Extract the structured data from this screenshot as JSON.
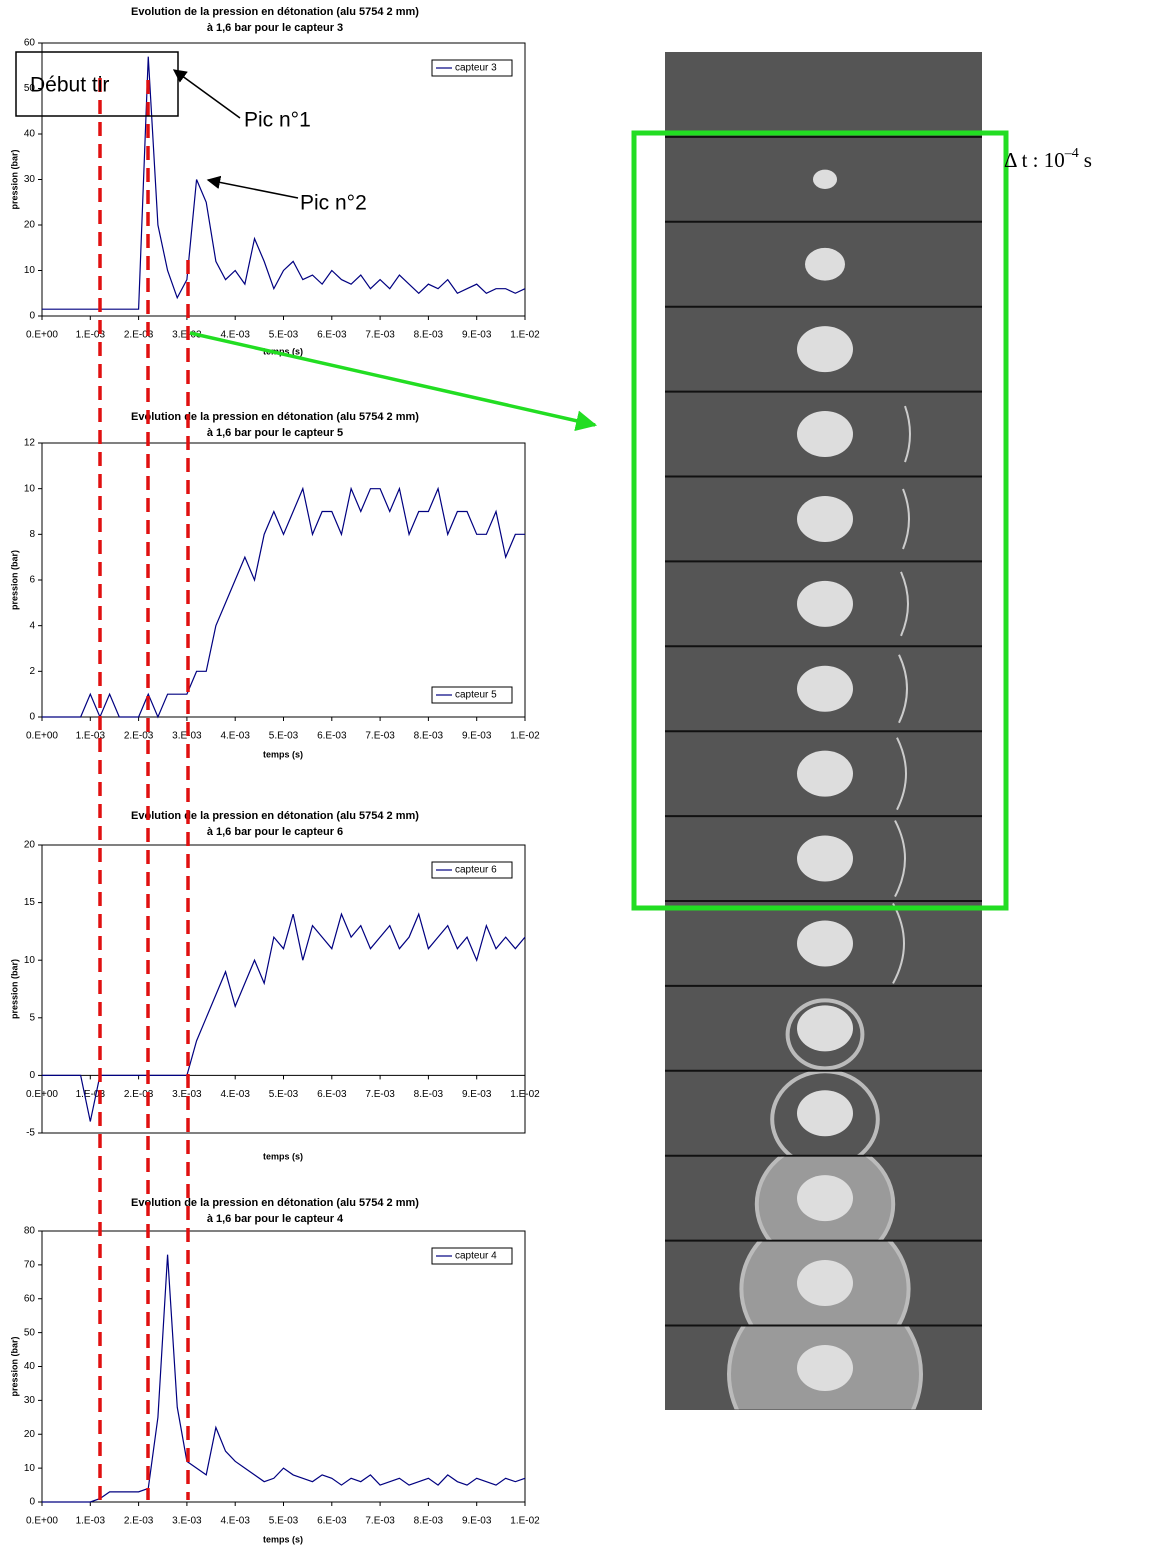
{
  "chart_data": [
    {
      "type": "line",
      "title": "Evolution de la pression en détonation (alu 5754 2 mm)",
      "subtitle": "à 1,6 bar pour le capteur 3",
      "x_label": "temps (s)",
      "y_label": "pression (bar)",
      "x": [
        0,
        0.0002,
        0.0004,
        0.0006,
        0.0008,
        0.001,
        0.0012,
        0.0014,
        0.0016,
        0.0018,
        0.002,
        0.0022,
        0.0024,
        0.0026,
        0.0028,
        0.003,
        0.0032,
        0.0034,
        0.0036,
        0.0038,
        0.004,
        0.0042,
        0.0044,
        0.0046,
        0.0048,
        0.005,
        0.0052,
        0.0054,
        0.0056,
        0.0058,
        0.006,
        0.0062,
        0.0064,
        0.0066,
        0.0068,
        0.007,
        0.0072,
        0.0074,
        0.0076,
        0.0078,
        0.008,
        0.0082,
        0.0084,
        0.0086,
        0.0088,
        0.009,
        0.0092,
        0.0094,
        0.0096,
        0.0098,
        0.01
      ],
      "series": [
        {
          "name": "capteur 3",
          "color": "#000080",
          "values": [
            1.5,
            1.5,
            1.5,
            1.5,
            1.5,
            1.5,
            1.5,
            1.5,
            1.5,
            1.5,
            1.5,
            57,
            20,
            10,
            4,
            8,
            30,
            25,
            12,
            8,
            10,
            7,
            17,
            12,
            6,
            10,
            12,
            8,
            9,
            7,
            10,
            8,
            7,
            9,
            6,
            8,
            6,
            9,
            7,
            5,
            7,
            6,
            8,
            5,
            6,
            7,
            5,
            6,
            6,
            5,
            6
          ]
        }
      ],
      "xlim": [
        0,
        0.01
      ],
      "xticks": [
        {
          "value": 0,
          "label": "0.E+00"
        },
        {
          "value": 0.001,
          "label": "1.E-03"
        },
        {
          "value": 0.002,
          "label": "2.E-03"
        },
        {
          "value": 0.003,
          "label": "3.E-03"
        },
        {
          "value": 0.004,
          "label": "4.E-03"
        },
        {
          "value": 0.005,
          "label": "5.E-03"
        },
        {
          "value": 0.006,
          "label": "6.E-03"
        },
        {
          "value": 0.007,
          "label": "7.E-03"
        },
        {
          "value": 0.008,
          "label": "8.E-03"
        },
        {
          "value": 0.009,
          "label": "9.E-03"
        },
        {
          "value": 0.01,
          "label": "1.E-02"
        }
      ],
      "ylim": [
        0,
        60
      ],
      "yticks": [
        0,
        10,
        20,
        30,
        40,
        50,
        60
      ],
      "legend": "upper right"
    },
    {
      "type": "line",
      "title": "Evolution de la pression en détonation (alu 5754 2 mm)",
      "subtitle": "à 1,6 bar pour le capteur 5",
      "x_label": "temps (s)",
      "y_label": "pression (bar)",
      "x": [
        0,
        0.0002,
        0.0004,
        0.0006,
        0.0008,
        0.001,
        0.0012,
        0.0014,
        0.0016,
        0.0018,
        0.002,
        0.0022,
        0.0024,
        0.0026,
        0.0028,
        0.003,
        0.0032,
        0.0034,
        0.0036,
        0.0038,
        0.004,
        0.0042,
        0.0044,
        0.0046,
        0.0048,
        0.005,
        0.0052,
        0.0054,
        0.0056,
        0.0058,
        0.006,
        0.0062,
        0.0064,
        0.0066,
        0.0068,
        0.007,
        0.0072,
        0.0074,
        0.0076,
        0.0078,
        0.008,
        0.0082,
        0.0084,
        0.0086,
        0.0088,
        0.009,
        0.0092,
        0.0094,
        0.0096,
        0.0098,
        0.01
      ],
      "series": [
        {
          "name": "capteur 5",
          "color": "#000080",
          "values": [
            0,
            0,
            0,
            0,
            0,
            1,
            0,
            1,
            0,
            0,
            0,
            1,
            0,
            1,
            1,
            1,
            2,
            2,
            4,
            5,
            6,
            7,
            6,
            8,
            9,
            8,
            9,
            10,
            8,
            9,
            9,
            8,
            10,
            9,
            10,
            10,
            9,
            10,
            8,
            9,
            9,
            10,
            8,
            9,
            9,
            8,
            8,
            9,
            7,
            8,
            8
          ]
        }
      ],
      "xlim": [
        0,
        0.01
      ],
      "xticks": [
        {
          "value": 0,
          "label": "0.E+00"
        },
        {
          "value": 0.001,
          "label": "1.E-03"
        },
        {
          "value": 0.002,
          "label": "2.E-03"
        },
        {
          "value": 0.003,
          "label": "3.E-03"
        },
        {
          "value": 0.004,
          "label": "4.E-03"
        },
        {
          "value": 0.005,
          "label": "5.E-03"
        },
        {
          "value": 0.006,
          "label": "6.E-03"
        },
        {
          "value": 0.007,
          "label": "7.E-03"
        },
        {
          "value": 0.008,
          "label": "8.E-03"
        },
        {
          "value": 0.009,
          "label": "9.E-03"
        },
        {
          "value": 0.01,
          "label": "1.E-02"
        }
      ],
      "ylim": [
        0,
        12
      ],
      "yticks": [
        0,
        2,
        4,
        6,
        8,
        10,
        12
      ],
      "legend": "lower right"
    },
    {
      "type": "line",
      "title": "Evolution de la pression en détonation (alu 5754 2 mm)",
      "subtitle": "à 1,6 bar pour le capteur 6",
      "x_label": "temps (s)",
      "y_label": "pression (bar)",
      "x": [
        0,
        0.0002,
        0.0004,
        0.0006,
        0.0008,
        0.001,
        0.0012,
        0.0014,
        0.0016,
        0.0018,
        0.002,
        0.0022,
        0.0024,
        0.0026,
        0.0028,
        0.003,
        0.0032,
        0.0034,
        0.0036,
        0.0038,
        0.004,
        0.0042,
        0.0044,
        0.0046,
        0.0048,
        0.005,
        0.0052,
        0.0054,
        0.0056,
        0.0058,
        0.006,
        0.0062,
        0.0064,
        0.0066,
        0.0068,
        0.007,
        0.0072,
        0.0074,
        0.0076,
        0.0078,
        0.008,
        0.0082,
        0.0084,
        0.0086,
        0.0088,
        0.009,
        0.0092,
        0.0094,
        0.0096,
        0.0098,
        0.01
      ],
      "series": [
        {
          "name": "capteur 6",
          "color": "#000080",
          "values": [
            0,
            0,
            0,
            0,
            0,
            -4,
            0,
            0,
            0,
            0,
            0,
            0,
            0,
            0,
            0,
            0,
            3,
            5,
            7,
            9,
            6,
            8,
            10,
            8,
            12,
            11,
            14,
            10,
            13,
            12,
            11,
            14,
            12,
            13,
            11,
            12,
            13,
            11,
            12,
            14,
            11,
            12,
            13,
            11,
            12,
            10,
            13,
            11,
            12,
            11,
            12
          ]
        }
      ],
      "xlim": [
        0,
        0.01
      ],
      "xticks": [
        {
          "value": 0,
          "label": "0.E+00"
        },
        {
          "value": 0.001,
          "label": "1.E-03"
        },
        {
          "value": 0.002,
          "label": "2.E-03"
        },
        {
          "value": 0.003,
          "label": "3.E-03"
        },
        {
          "value": 0.004,
          "label": "4.E-03"
        },
        {
          "value": 0.005,
          "label": "5.E-03"
        },
        {
          "value": 0.006,
          "label": "6.E-03"
        },
        {
          "value": 0.007,
          "label": "7.E-03"
        },
        {
          "value": 0.008,
          "label": "8.E-03"
        },
        {
          "value": 0.009,
          "label": "9.E-03"
        },
        {
          "value": 0.01,
          "label": "1.E-02"
        }
      ],
      "ylim": [
        -5,
        20
      ],
      "yticks": [
        -5,
        0,
        5,
        10,
        15,
        20
      ],
      "legend": "upper right"
    },
    {
      "type": "line",
      "title": "Evolution de la pression en détonation (alu 5754 2 mm)",
      "subtitle": "à 1,6 bar pour le capteur 4",
      "x_label": "temps (s)",
      "y_label": "pression (bar)",
      "x": [
        0,
        0.0002,
        0.0004,
        0.0006,
        0.0008,
        0.001,
        0.0012,
        0.0014,
        0.0016,
        0.0018,
        0.002,
        0.0022,
        0.0024,
        0.0026,
        0.0028,
        0.003,
        0.0032,
        0.0034,
        0.0036,
        0.0038,
        0.004,
        0.0042,
        0.0044,
        0.0046,
        0.0048,
        0.005,
        0.0052,
        0.0054,
        0.0056,
        0.0058,
        0.006,
        0.0062,
        0.0064,
        0.0066,
        0.0068,
        0.007,
        0.0072,
        0.0074,
        0.0076,
        0.0078,
        0.008,
        0.0082,
        0.0084,
        0.0086,
        0.0088,
        0.009,
        0.0092,
        0.0094,
        0.0096,
        0.0098,
        0.01
      ],
      "series": [
        {
          "name": "capteur 4",
          "color": "#000080",
          "values": [
            0,
            0,
            0,
            0,
            0,
            0,
            1,
            3,
            3,
            3,
            3,
            4,
            25,
            73,
            28,
            12,
            10,
            8,
            22,
            15,
            12,
            10,
            8,
            6,
            7,
            10,
            8,
            7,
            6,
            8,
            7,
            5,
            7,
            6,
            8,
            5,
            6,
            7,
            5,
            6,
            7,
            5,
            8,
            6,
            5,
            7,
            6,
            5,
            7,
            6,
            7
          ]
        }
      ],
      "xlim": [
        0,
        0.01
      ],
      "xticks": [
        {
          "value": 0,
          "label": "0.E+00"
        },
        {
          "value": 0.001,
          "label": "1.E-03"
        },
        {
          "value": 0.002,
          "label": "2.E-03"
        },
        {
          "value": 0.003,
          "label": "3.E-03"
        },
        {
          "value": 0.004,
          "label": "4.E-03"
        },
        {
          "value": 0.005,
          "label": "5.E-03"
        },
        {
          "value": 0.006,
          "label": "6.E-03"
        },
        {
          "value": 0.007,
          "label": "7.E-03"
        },
        {
          "value": 0.008,
          "label": "8.E-03"
        },
        {
          "value": 0.009,
          "label": "9.E-03"
        },
        {
          "value": 0.01,
          "label": "1.E-02"
        }
      ],
      "ylim": [
        0,
        80
      ],
      "yticks": [
        0,
        10,
        20,
        30,
        40,
        50,
        60,
        70,
        80
      ],
      "legend": "upper right"
    }
  ],
  "annotations": {
    "start": "Début tir",
    "peak1": "Pic n°1",
    "peak2": "Pic n°2",
    "timestep": {
      "text": "Δ t : 10",
      "exponent": "–4",
      "unit": "s"
    }
  }
}
